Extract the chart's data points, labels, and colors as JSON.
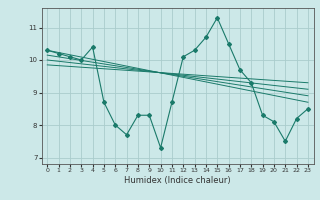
{
  "xlabel": "Humidex (Indice chaleur)",
  "ylabel": "",
  "bg_color": "#cce8e8",
  "grid_color": "#aacccc",
  "line_color": "#1a7a6a",
  "xlim": [
    -0.5,
    23.5
  ],
  "ylim": [
    6.8,
    11.6
  ],
  "yticks": [
    7,
    8,
    9,
    10,
    11
  ],
  "xticks": [
    0,
    1,
    2,
    3,
    4,
    5,
    6,
    7,
    8,
    9,
    10,
    11,
    12,
    13,
    14,
    15,
    16,
    17,
    18,
    19,
    20,
    21,
    22,
    23
  ],
  "main_series": [
    [
      0,
      10.3
    ],
    [
      1,
      10.2
    ],
    [
      2,
      10.1
    ],
    [
      3,
      10.0
    ],
    [
      4,
      10.4
    ],
    [
      5,
      8.7
    ],
    [
      6,
      8.0
    ],
    [
      7,
      7.7
    ],
    [
      8,
      8.3
    ],
    [
      9,
      8.3
    ],
    [
      10,
      7.3
    ],
    [
      11,
      8.7
    ],
    [
      12,
      10.1
    ],
    [
      13,
      10.3
    ],
    [
      14,
      10.7
    ],
    [
      15,
      11.3
    ],
    [
      16,
      10.5
    ],
    [
      17,
      9.7
    ],
    [
      18,
      9.3
    ],
    [
      19,
      8.3
    ],
    [
      20,
      8.1
    ],
    [
      21,
      7.5
    ],
    [
      22,
      8.2
    ],
    [
      23,
      8.5
    ]
  ],
  "trend_lines": [
    [
      [
        0,
        10.3
      ],
      [
        23,
        8.7
      ]
    ],
    [
      [
        0,
        10.15
      ],
      [
        23,
        8.9
      ]
    ],
    [
      [
        0,
        10.0
      ],
      [
        23,
        9.1
      ]
    ],
    [
      [
        0,
        9.85
      ],
      [
        23,
        9.3
      ]
    ]
  ]
}
